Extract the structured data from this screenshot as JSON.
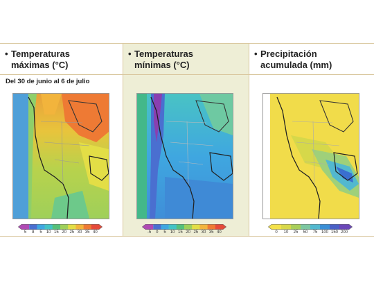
{
  "panels": [
    {
      "title_line1": "Temperaturas",
      "title_line2": "máximas (°C)",
      "subtitle": "Del 30 de junio al 6 de julio",
      "scale_ticks": [
        "5",
        "8",
        "5",
        "10",
        "15",
        "20",
        "25",
        "30",
        "35",
        "40"
      ],
      "colors": [
        "#b04ab4",
        "#4a6fd0",
        "#3fa7e0",
        "#43c3c5",
        "#55c07a",
        "#9fd05a",
        "#e3de46",
        "#f2b43c",
        "#ee7a34",
        "#e54a3a"
      ]
    },
    {
      "title_line1": "Temperaturas",
      "title_line2": "mínimas (°C)",
      "scale_ticks": [
        "-5",
        "0",
        "5",
        "10",
        "15",
        "20",
        "25",
        "30",
        "35",
        "40"
      ],
      "colors": [
        "#b04ab4",
        "#4a6fd0",
        "#3fa7e0",
        "#43c3c5",
        "#55c07a",
        "#9fd05a",
        "#e3de46",
        "#f2b43c",
        "#ee7a34",
        "#e54a3a"
      ]
    },
    {
      "title_line1": "Precipitación",
      "title_line2": "acumulada (mm)",
      "scale_ticks": [
        "0",
        "10",
        "25",
        "50",
        "75",
        "100",
        "150",
        "200"
      ],
      "colors": [
        "#f4e14a",
        "#d8d84a",
        "#a9cf5a",
        "#7cc7a0",
        "#52b8cf",
        "#3a8fd6",
        "#4a60c6",
        "#6b47b8"
      ]
    }
  ]
}
